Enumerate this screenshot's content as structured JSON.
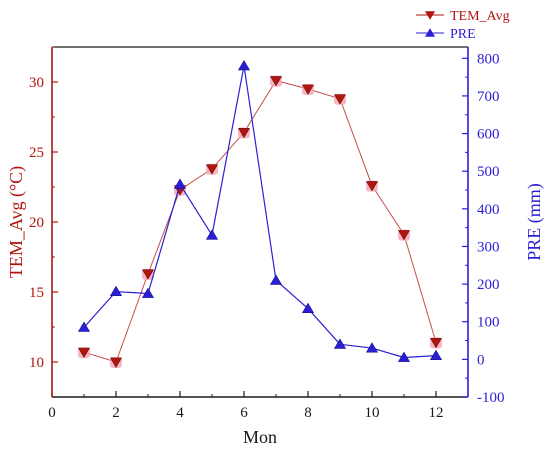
{
  "colors": {
    "tem": "#b0150f",
    "pre": "#2b1fd6",
    "tem_halo": "#f2a7b8",
    "axis_dark": "#1a1a1a"
  },
  "chart_data": {
    "type": "line",
    "x": [
      1,
      2,
      3,
      4,
      5,
      6,
      7,
      8,
      9,
      10,
      11,
      12
    ],
    "xlabel": "Mon",
    "xlim": [
      0,
      13
    ],
    "xticks": [
      "0",
      "2",
      "4",
      "6",
      "8",
      "10",
      "12"
    ],
    "grid": false,
    "legend_position": "top-right",
    "series": [
      {
        "name": "TEM_Avg",
        "axis": "left",
        "marker": "triangle-down",
        "values": [
          10.7,
          10.0,
          16.3,
          22.3,
          23.8,
          26.4,
          30.1,
          29.5,
          28.8,
          22.6,
          19.1,
          11.4
        ]
      },
      {
        "name": "PRE",
        "axis": "right",
        "marker": "triangle-up",
        "values": [
          85,
          180,
          175,
          465,
          330,
          780,
          210,
          135,
          40,
          30,
          5,
          10
        ]
      }
    ],
    "ylabel_left": "TEM_Avg (°C)",
    "ylim_left": [
      7.5,
      32.5
    ],
    "yticks_left": [
      "10",
      "15",
      "20",
      "25",
      "30"
    ],
    "ylabel_right": "PRE (mm)",
    "ylim_right": [
      -100,
      830
    ],
    "yticks_right": [
      "-100",
      "0",
      "100",
      "200",
      "300",
      "400",
      "500",
      "600",
      "700",
      "800"
    ]
  }
}
